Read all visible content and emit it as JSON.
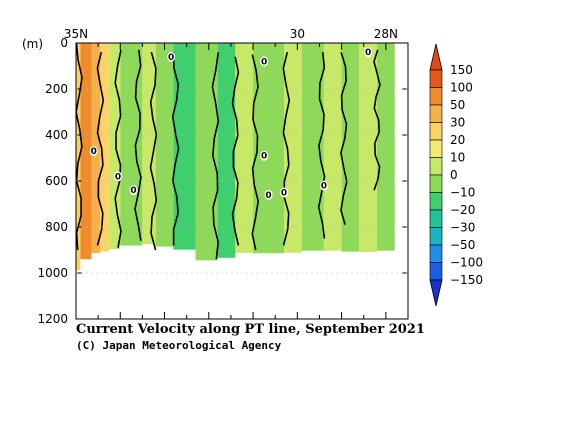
{
  "chart_data": {
    "type": "heatmap",
    "title": "Current Velocity along PT line, September 2021",
    "credit": "(C) Japan Meteorological Agency",
    "ylabel": "(m)",
    "x_ticks": [
      {
        "lat": 35,
        "label": "35N"
      },
      {
        "lat": 30,
        "label": "30"
      },
      {
        "lat": 28,
        "label": "28N"
      }
    ],
    "xlim": [
      35,
      27.5
    ],
    "y_ticks": [
      0,
      200,
      400,
      600,
      800,
      1000,
      1200
    ],
    "ylim": [
      0,
      1200
    ],
    "colorbar": {
      "labels": [
        "150",
        "100",
        "50",
        "30",
        "20",
        "10",
        "0",
        "−10",
        "−20",
        "−30",
        "−50",
        "−100",
        "−150"
      ],
      "colors": [
        "#e55a1c",
        "#ef8c2b",
        "#f6b14c",
        "#fbd265",
        "#f3ea72",
        "#c8e868",
        "#8fd95a",
        "#3fcf6e",
        "#20c49a",
        "#18b6c4",
        "#1e8fe6",
        "#1a5ee6"
      ],
      "bottom_color": "#1a34c8",
      "top_color": "#e04a18"
    },
    "zero_contour_label": "0",
    "bands": [
      {
        "from": 35.0,
        "to": 34.9,
        "value": 25
      },
      {
        "from": 34.9,
        "to": 34.65,
        "value": 85
      },
      {
        "from": 34.65,
        "to": 34.45,
        "value": 45
      },
      {
        "from": 34.45,
        "to": 34.25,
        "value": 20
      },
      {
        "from": 34.25,
        "to": 34.0,
        "value": 8
      },
      {
        "from": 34.0,
        "to": 33.5,
        "value": -4
      },
      {
        "from": 33.5,
        "to": 33.2,
        "value": 6
      },
      {
        "from": 33.2,
        "to": 32.8,
        "value": -8
      },
      {
        "from": 32.8,
        "to": 32.3,
        "value": -14
      },
      {
        "from": 32.3,
        "to": 31.8,
        "value": -6
      },
      {
        "from": 31.8,
        "to": 31.4,
        "value": -16
      },
      {
        "from": 31.4,
        "to": 31.0,
        "value": 5
      },
      {
        "from": 31.0,
        "to": 30.3,
        "value": -3
      },
      {
        "from": 30.3,
        "to": 29.9,
        "value": 4
      },
      {
        "from": 29.9,
        "to": 29.4,
        "value": -10
      },
      {
        "from": 29.4,
        "to": 29.0,
        "value": 3
      },
      {
        "from": 29.0,
        "to": 28.6,
        "value": -5
      },
      {
        "from": 28.6,
        "to": 28.2,
        "value": 6
      },
      {
        "from": 28.2,
        "to": 27.8,
        "value": -8
      }
    ],
    "bottom_depth": [
      {
        "lat": 35.0,
        "depth": 1000
      },
      {
        "lat": 34.7,
        "depth": 920
      },
      {
        "lat": 34.2,
        "depth": 900
      },
      {
        "lat": 33.5,
        "depth": 870
      },
      {
        "lat": 32.5,
        "depth": 900
      },
      {
        "lat": 32.0,
        "depth": 950
      },
      {
        "lat": 31.5,
        "depth": 930
      },
      {
        "lat": 31.0,
        "depth": 900
      },
      {
        "lat": 30.5,
        "depth": 920
      },
      {
        "lat": 29.5,
        "depth": 900
      },
      {
        "lat": 28.5,
        "depth": 910
      },
      {
        "lat": 27.8,
        "depth": 900
      }
    ],
    "zero_contours": [
      {
        "lat": 34.93,
        "top": 0,
        "bottom": 900
      },
      {
        "lat": 34.45,
        "top": 40,
        "bottom": 880
      },
      {
        "lat": 34.05,
        "top": 30,
        "bottom": 890
      },
      {
        "lat": 33.6,
        "top": 30,
        "bottom": 860
      },
      {
        "lat": 33.25,
        "top": 40,
        "bottom": 900
      },
      {
        "lat": 32.75,
        "top": 40,
        "bottom": 880
      },
      {
        "lat": 31.85,
        "top": 40,
        "bottom": 940
      },
      {
        "lat": 31.4,
        "top": 60,
        "bottom": 880
      },
      {
        "lat": 30.95,
        "top": 50,
        "bottom": 900
      },
      {
        "lat": 30.25,
        "top": 40,
        "bottom": 880
      },
      {
        "lat": 29.45,
        "top": 40,
        "bottom": 850
      },
      {
        "lat": 28.95,
        "top": 40,
        "bottom": 790
      },
      {
        "lat": 28.2,
        "top": 30,
        "bottom": 640
      }
    ],
    "zero_labels": [
      {
        "lat": 34.6,
        "depth": 470
      },
      {
        "lat": 34.05,
        "depth": 580
      },
      {
        "lat": 33.7,
        "depth": 640
      },
      {
        "lat": 32.85,
        "depth": 60
      },
      {
        "lat": 30.75,
        "depth": 80
      },
      {
        "lat": 30.75,
        "depth": 490
      },
      {
        "lat": 30.65,
        "depth": 660
      },
      {
        "lat": 30.3,
        "depth": 650
      },
      {
        "lat": 29.4,
        "depth": 620
      },
      {
        "lat": 28.4,
        "depth": 40
      }
    ]
  }
}
